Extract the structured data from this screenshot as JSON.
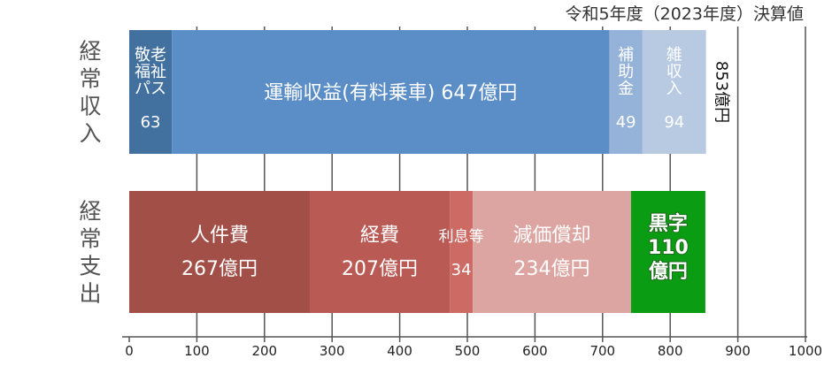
{
  "chart_data": {
    "type": "bar",
    "orientation": "horizontal-stacked",
    "title": "令和5年度（2023年度）決算値",
    "xlim": [
      0,
      1000
    ],
    "xticks": [
      0,
      100,
      200,
      300,
      400,
      500,
      600,
      700,
      800,
      900,
      1000
    ],
    "grid": true,
    "categories": [
      "経常収入",
      "経常支出"
    ],
    "rows": [
      {
        "label": "経常収入",
        "total_label": "853億円",
        "segments": [
          {
            "name": "敬老福祉パス",
            "value": 63,
            "lines": [
              "敬老",
              "福祉",
              "パス"
            ],
            "value_label": "63",
            "color": "#43719f"
          },
          {
            "name": "運輸収益(有料乗車)",
            "value": 647,
            "lines": [
              "運輸収益(有料乗車) 647億円"
            ],
            "value_label": "",
            "color": "#5b8dc6"
          },
          {
            "name": "補助金",
            "value": 49,
            "lines": [
              "補",
              "助",
              "金"
            ],
            "value_label": "49",
            "color": "#95b2d8"
          },
          {
            "name": "雑収入",
            "value": 94,
            "lines": [
              "雑",
              "収",
              "入"
            ],
            "value_label": "94",
            "color": "#b8c9e2"
          }
        ]
      },
      {
        "label": "経常支出",
        "segments": [
          {
            "name": "人件費",
            "value": 267,
            "lines": [
              "人件費"
            ],
            "value_label": "267億円",
            "color": "#a24f48"
          },
          {
            "name": "経費",
            "value": 207,
            "lines": [
              "経費"
            ],
            "value_label": "207億円",
            "color": "#ba5a55"
          },
          {
            "name": "利息等",
            "value": 34,
            "lines": [
              "利息等"
            ],
            "value_label": "34",
            "color": "#cc6a63"
          },
          {
            "name": "減価償却",
            "value": 234,
            "lines": [
              "減価償却"
            ],
            "value_label": "234億円",
            "color": "#dca5a1"
          },
          {
            "name": "黒字",
            "value": 110,
            "lines": [
              "黒字",
              "110",
              "億円"
            ],
            "value_label": "",
            "color": "#0a9c12"
          }
        ]
      }
    ]
  }
}
